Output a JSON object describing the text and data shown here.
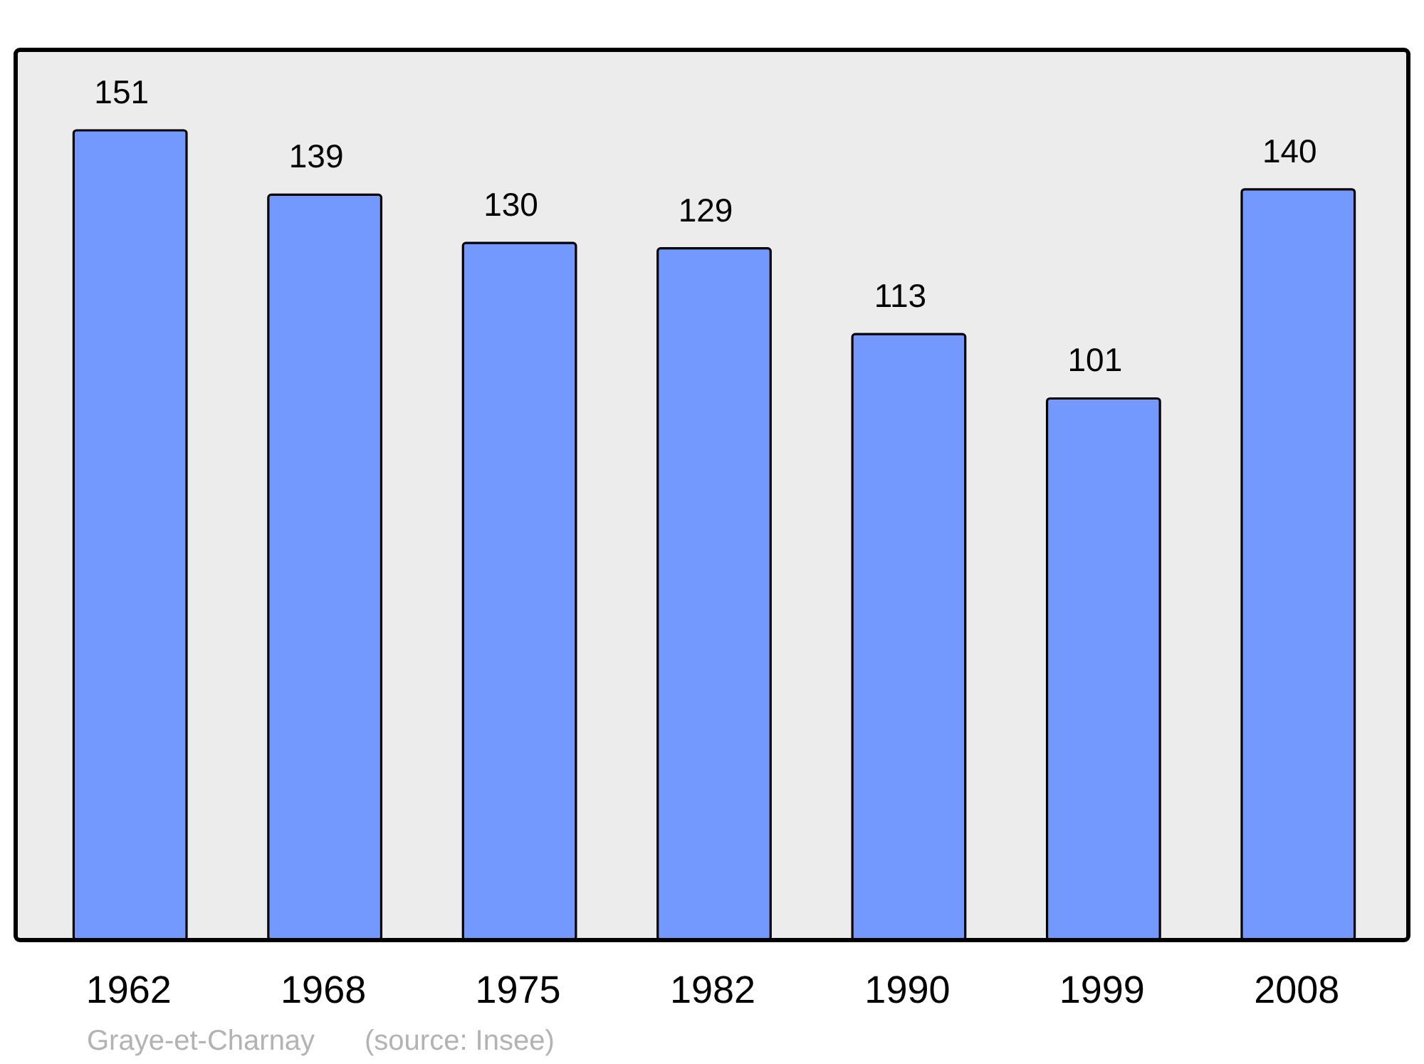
{
  "chart_data": {
    "type": "bar",
    "categories": [
      "1962",
      "1968",
      "1975",
      "1982",
      "1990",
      "1999",
      "2008"
    ],
    "values": [
      151,
      139,
      130,
      129,
      113,
      101,
      140
    ],
    "color": "#7399ff",
    "data_labels": true,
    "annotations": [
      "Graye-et-Charnay",
      "(source: Insee)"
    ]
  }
}
